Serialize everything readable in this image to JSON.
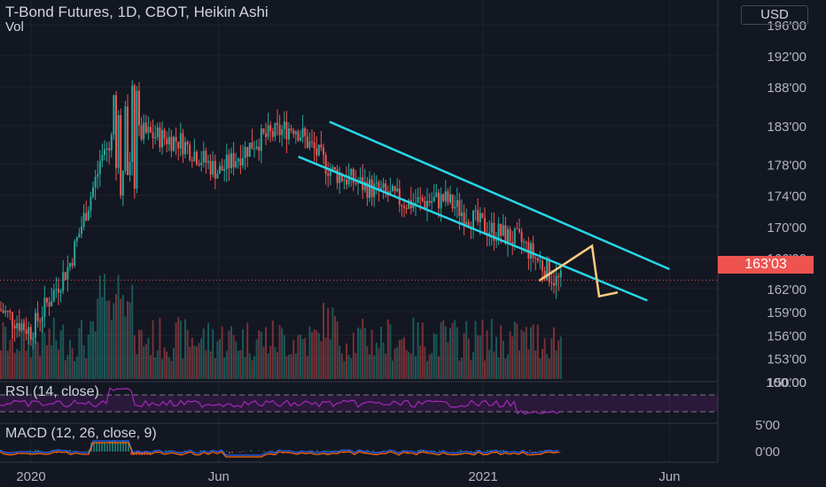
{
  "header": {
    "title": "T-Bond Futures, 1D, CBOT, Heikin Ashi",
    "volume_label": "Vol",
    "currency": "USD",
    "last_price": "163'03"
  },
  "rsi": {
    "label": "RSI (14, close)"
  },
  "macd": {
    "label": "MACD (12, 26, close, 9)"
  },
  "colors": {
    "up": "#26a69a",
    "down": "#ef5350",
    "channel": "#26d7e8",
    "projection": "#ffcc80",
    "rsi": "#9c27b0"
  },
  "chart_data": {
    "type": "candlestick",
    "x_ticks": [
      "2020",
      "Jun",
      "2021",
      "Jun"
    ],
    "price_ticks": [
      "196'00",
      "192'00",
      "188'00",
      "183'00",
      "178'00",
      "174'00",
      "170'00",
      "166'00",
      "162'00",
      "159'00",
      "156'00",
      "153'00",
      "150'00"
    ],
    "rsi_ticks": [
      "100.00"
    ],
    "macd_ticks": [
      "5'00",
      "0'00"
    ],
    "price_series": [
      {
        "date": "2019-12",
        "price": 160
      },
      {
        "date": "2020-01",
        "price": 156.5
      },
      {
        "date": "2020-02",
        "price": 165
      },
      {
        "date": "2020-03",
        "price": 180
      },
      {
        "date": "2020-04",
        "price": 182
      },
      {
        "date": "2020-05",
        "price": 181
      },
      {
        "date": "2020-06",
        "price": 177
      },
      {
        "date": "2020-07",
        "price": 181
      },
      {
        "date": "2020-08",
        "price": 183
      },
      {
        "date": "2020-09",
        "price": 177
      },
      {
        "date": "2020-10",
        "price": 175
      },
      {
        "date": "2020-11",
        "price": 173
      },
      {
        "date": "2020-12",
        "price": 173.5
      },
      {
        "date": "2021-01",
        "price": 170
      },
      {
        "date": "2021-02",
        "price": 168
      },
      {
        "date": "2021-03",
        "price": 163
      }
    ],
    "price_range": [
      150,
      196
    ],
    "channel_upper": [
      {
        "date": "2020-08",
        "price": 183.5
      },
      {
        "date": "2021-06",
        "price": 164.5
      }
    ],
    "channel_lower": [
      {
        "date": "2020-07",
        "price": 179
      },
      {
        "date": "2021-04",
        "price": 160
      }
    ],
    "projection_path": [
      {
        "date": "2021-03",
        "price": 163
      },
      {
        "date": "2021-04",
        "price": 167.5
      },
      {
        "date": "2021-04",
        "price": 161
      },
      {
        "date": "2021-05",
        "price": 161.5
      }
    ],
    "rsi_level": 18,
    "last_price": 163.09
  }
}
